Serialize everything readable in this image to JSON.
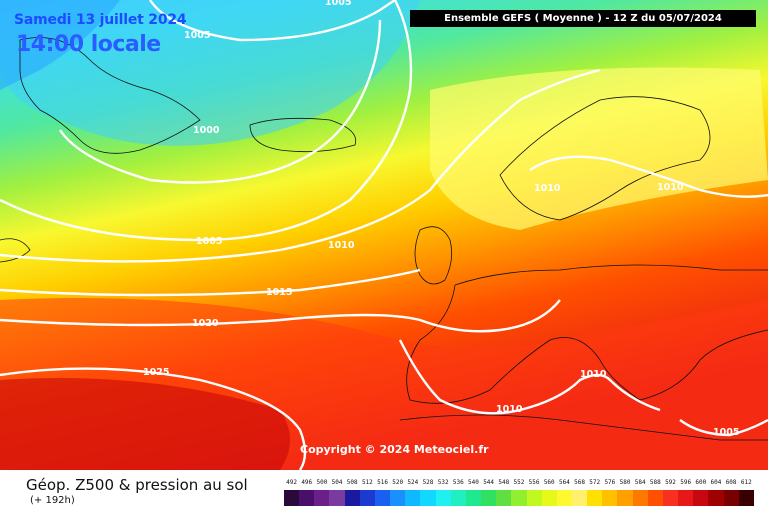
{
  "header": {
    "date": "Samedi 13 juillet 2024",
    "time": "14:00 locale",
    "run_info": "Ensemble GEFS  ( Moyenne )  -  12 Z du 05/07/2024"
  },
  "product": {
    "title": "Géop. Z500 & pression au sol",
    "range": "(+ 192h)"
  },
  "copyright": "Copyright © 2024 Meteociel.fr",
  "isobar_labels": [
    "1005",
    "1005",
    "1000",
    "1010",
    "1010",
    "1005",
    "1010",
    "1015",
    "1020",
    "1025",
    "1010",
    "1010",
    "1005"
  ],
  "legend": {
    "values": [
      "492",
      "496",
      "500",
      "504",
      "508",
      "512",
      "516",
      "520",
      "524",
      "528",
      "532",
      "536",
      "540",
      "544",
      "548",
      "552",
      "556",
      "560",
      "564",
      "568",
      "572",
      "576",
      "580",
      "584",
      "588",
      "592",
      "596",
      "600",
      "604",
      "608",
      "612"
    ],
    "colors": [
      "#2a0a3a",
      "#4a0f6a",
      "#6a1f8a",
      "#7a3aa0",
      "#1a1aa0",
      "#1a3ad0",
      "#1a60f0",
      "#1a90ff",
      "#10b8ff",
      "#10d8ff",
      "#20f0f0",
      "#20f0c0",
      "#20e890",
      "#30e060",
      "#60e040",
      "#90f030",
      "#c0f820",
      "#e8f818",
      "#fff830",
      "#fff070",
      "#ffe000",
      "#ffc000",
      "#ffa000",
      "#ff7800",
      "#ff5000",
      "#f83020",
      "#e81818",
      "#c80810",
      "#a00000",
      "#780000",
      "#3a0000"
    ],
    "geo_color": "#000000"
  }
}
